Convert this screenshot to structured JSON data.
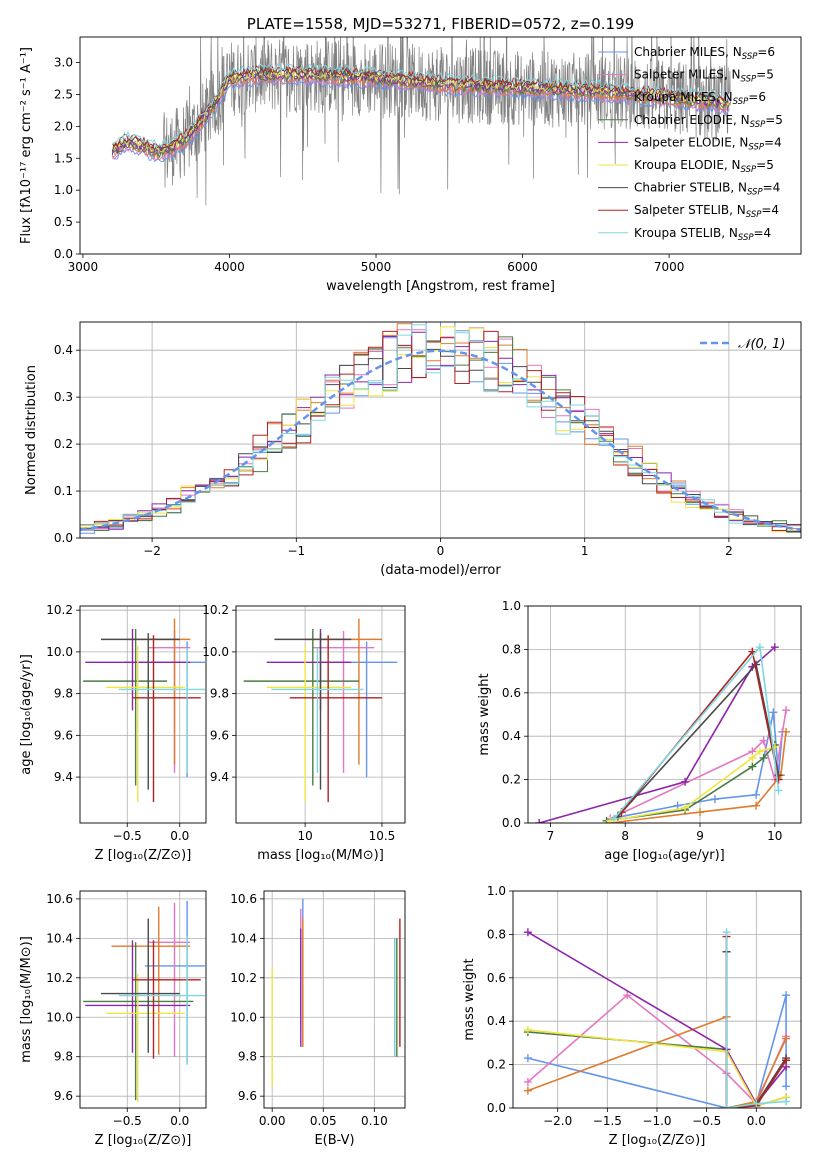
{
  "colors": [
    "#6495ed",
    "#e377c2",
    "#e07b2e",
    "#4a7c43",
    "#8e24aa",
    "#f0e442",
    "#4a4a4a",
    "#b22222",
    "#7fd8e0"
  ],
  "chart_data": [
    {
      "id": "spectrum",
      "type": "line",
      "title": "PLATE=1558, MJD=53271, FIBERID=0572, z=0.199",
      "xlabel": "wavelength [Angstrom, rest frame]",
      "ylabel": "Flux [fλ10⁻¹⁷ erg cm⁻² s⁻¹ A⁻¹]",
      "xlim": [
        2980,
        7900
      ],
      "ylim": [
        0,
        3.4
      ],
      "xticks": [
        3000,
        4000,
        5000,
        6000,
        7000
      ],
      "yticks": [
        0.0,
        0.5,
        1.0,
        1.5,
        2.0,
        2.5,
        3.0
      ],
      "continuum": [
        [
          3200,
          1.6
        ],
        [
          3300,
          1.75
        ],
        [
          3400,
          1.7
        ],
        [
          3500,
          1.6
        ],
        [
          3600,
          1.65
        ],
        [
          3700,
          1.8
        ],
        [
          3800,
          2.05
        ],
        [
          3900,
          2.35
        ],
        [
          4000,
          2.75
        ],
        [
          4200,
          2.8
        ],
        [
          4500,
          2.8
        ],
        [
          5000,
          2.75
        ],
        [
          5500,
          2.65
        ],
        [
          6000,
          2.6
        ],
        [
          6500,
          2.55
        ],
        [
          7000,
          2.45
        ],
        [
          7400,
          2.35
        ]
      ],
      "legend": [
        {
          "name": "Chabrier MILES, N",
          "sub": "SSP",
          "suffix": "=6"
        },
        {
          "name": "Salpeter MILES, N",
          "sub": "SSP",
          "suffix": "=5"
        },
        {
          "name": "Kroupa MILES, N",
          "sub": "SSP",
          "suffix": "=6"
        },
        {
          "name": "Chabrier ELODIE, N",
          "sub": "SSP",
          "suffix": "=5"
        },
        {
          "name": "Salpeter ELODIE, N",
          "sub": "SSP",
          "suffix": "=4"
        },
        {
          "name": "Kroupa ELODIE, N",
          "sub": "SSP",
          "suffix": "=5"
        },
        {
          "name": "Chabrier STELIB, N",
          "sub": "SSP",
          "suffix": "=4"
        },
        {
          "name": "Salpeter STELIB, N",
          "sub": "SSP",
          "suffix": "=4"
        },
        {
          "name": "Kroupa STELIB, N",
          "sub": "SSP",
          "suffix": "=4"
        }
      ],
      "legend_placement": "upper right",
      "grid": false
    },
    {
      "id": "residuals",
      "type": "histogram",
      "xlabel": "(data-model)/error",
      "ylabel": "Normed distribution",
      "xlim": [
        -2.5,
        2.5
      ],
      "ylim": [
        0,
        0.46
      ],
      "xticks": [
        -2,
        -1,
        0,
        1,
        2
      ],
      "yticks": [
        0.0,
        0.1,
        0.2,
        0.3,
        0.4
      ],
      "bin_width": 0.1,
      "legend": "𝒩(0, 1)",
      "grid": true
    },
    {
      "id": "age_vs_Z",
      "type": "errorbar",
      "xlabel": "Z [log₁₀(Z/Z⊙)]",
      "ylabel": "age  [log₁₀(age/yr)]",
      "xlim": [
        -0.95,
        0.25
      ],
      "ylim": [
        9.18,
        10.22
      ],
      "xticks": [
        -0.5,
        0.0
      ],
      "xticklabels": [
        "−0.5",
        "0.0"
      ],
      "yticks": [
        9.4,
        9.6,
        9.8,
        10.0,
        10.2
      ],
      "points": [
        {
          "x": 0.07,
          "y": 9.95,
          "xl": 0.6,
          "xh": 0.17,
          "yl": 0.55,
          "yh": 0.1
        },
        {
          "x": -0.05,
          "y": 10.02,
          "xl": 0.25,
          "xh": 0.15,
          "yl": 0.6,
          "yh": 0.08
        },
        {
          "x": -0.05,
          "y": 10.06,
          "xl": 0.45,
          "xh": 0.15,
          "yl": 0.6,
          "yh": 0.1
        },
        {
          "x": -0.42,
          "y": 9.86,
          "xl": 0.5,
          "xh": 0.3,
          "yl": 0.5,
          "yh": 0.25
        },
        {
          "x": -0.45,
          "y": 9.95,
          "xl": 0.45,
          "xh": 0.55,
          "yl": 0.23,
          "yh": 0.16
        },
        {
          "x": -0.4,
          "y": 9.83,
          "xl": 0.3,
          "xh": 0.45,
          "yl": 0.55,
          "yh": 0.2
        },
        {
          "x": -0.3,
          "y": 10.06,
          "xl": 0.45,
          "xh": 0.3,
          "yl": 0.72,
          "yh": 0.03
        },
        {
          "x": -0.25,
          "y": 9.78,
          "xl": 0.2,
          "xh": 0.45,
          "yl": 0.5,
          "yh": 0.3
        },
        {
          "x": 0.07,
          "y": 9.82,
          "xl": 0.65,
          "xh": 0.17,
          "yl": 0.4,
          "yh": 0.2
        }
      ]
    },
    {
      "id": "age_vs_mass",
      "type": "errorbar",
      "xlabel": "mass [log₁₀(M/M⊙)]",
      "ylabel": "",
      "xlim": [
        9.55,
        10.65
      ],
      "ylim": [
        9.18,
        10.22
      ],
      "xticks": [
        10.0,
        10.5
      ],
      "yticks": [
        9.4,
        9.6,
        9.8,
        10.0,
        10.2
      ],
      "points": [
        {
          "x": 10.4,
          "y": 9.95,
          "xl": 0.3,
          "xh": 0.2,
          "yl": 0.55,
          "yh": 0.1
        },
        {
          "x": 10.25,
          "y": 10.02,
          "xl": 0.2,
          "xh": 0.2,
          "yl": 0.6,
          "yh": 0.08
        },
        {
          "x": 10.35,
          "y": 10.06,
          "xl": 0.35,
          "xh": 0.15,
          "yl": 0.6,
          "yh": 0.1
        },
        {
          "x": 10.05,
          "y": 9.86,
          "xl": 0.45,
          "xh": 0.3,
          "yl": 0.5,
          "yh": 0.25
        },
        {
          "x": 10.1,
          "y": 9.95,
          "xl": 0.35,
          "xh": 0.2,
          "yl": 0.23,
          "yh": 0.16
        },
        {
          "x": 10.0,
          "y": 9.83,
          "xl": 0.25,
          "xh": 0.3,
          "yl": 0.55,
          "yh": 0.2
        },
        {
          "x": 10.1,
          "y": 10.06,
          "xl": 0.3,
          "xh": 0.2,
          "yl": 0.72,
          "yh": 0.03
        },
        {
          "x": 10.15,
          "y": 9.78,
          "xl": 0.25,
          "xh": 0.35,
          "yl": 0.5,
          "yh": 0.3
        },
        {
          "x": 10.08,
          "y": 9.82,
          "xl": 0.3,
          "xh": 0.3,
          "yl": 0.4,
          "yh": 0.2
        }
      ]
    },
    {
      "id": "weight_vs_age",
      "type": "line",
      "xlabel": "age  [log₁₀(age/yr)]",
      "ylabel": "mass weight",
      "xlim": [
        6.7,
        10.35
      ],
      "ylim": [
        0,
        1.0
      ],
      "xticks": [
        7,
        8,
        9,
        10
      ],
      "yticks": [
        0.0,
        0.2,
        0.4,
        0.6,
        0.8,
        1.0
      ],
      "series": [
        {
          "x": [
            7.8,
            8.7,
            9.2,
            9.75,
            9.98,
            10.05,
            10.1
          ],
          "y": [
            0.02,
            0.08,
            0.11,
            0.13,
            0.51,
            0.22,
            0.42
          ]
        },
        {
          "x": [
            7.8,
            9.7,
            9.85,
            10.0,
            10.15
          ],
          "y": [
            0.02,
            0.33,
            0.38,
            0.2,
            0.52
          ]
        },
        {
          "x": [
            7.8,
            9.0,
            9.75,
            10.08,
            10.15
          ],
          "y": [
            0.0,
            0.05,
            0.08,
            0.22,
            0.42
          ]
        },
        {
          "x": [
            7.75,
            8.8,
            9.7,
            9.85,
            10.0
          ],
          "y": [
            0.01,
            0.06,
            0.26,
            0.3,
            0.36
          ]
        },
        {
          "x": [
            6.85,
            8.8,
            9.7,
            10.0
          ],
          "y": [
            0.0,
            0.19,
            0.72,
            0.81
          ]
        },
        {
          "x": [
            7.8,
            8.8,
            9.7,
            9.8,
            10.0
          ],
          "y": [
            0.01,
            0.07,
            0.3,
            0.33,
            0.35
          ]
        },
        {
          "x": [
            7.9,
            9.75,
            10.05
          ],
          "y": [
            0.03,
            0.73,
            0.22
          ]
        },
        {
          "x": [
            7.95,
            9.7,
            10.05
          ],
          "y": [
            0.05,
            0.79,
            0.2
          ]
        },
        {
          "x": [
            7.85,
            9.8,
            10.05
          ],
          "y": [
            0.02,
            0.81,
            0.15
          ]
        }
      ]
    },
    {
      "id": "mass_vs_Z",
      "type": "errorbar",
      "xlabel": "Z [log₁₀(Z/Z⊙)]",
      "ylabel": "mass [log₁₀(M/M⊙)]",
      "xlim": [
        -0.95,
        0.25
      ],
      "ylim": [
        9.54,
        10.64
      ],
      "xticks": [
        -0.5,
        0.0
      ],
      "xticklabels": [
        "−0.5",
        "0.0"
      ],
      "yticks": [
        9.6,
        9.8,
        10.0,
        10.2,
        10.4,
        10.6
      ],
      "points": [
        {
          "x": 0.07,
          "y": 10.26,
          "xl": 0.4,
          "xh": 0.17,
          "yl": 0.5,
          "yh": 0.33
        },
        {
          "x": -0.05,
          "y": 10.38,
          "xl": 0.25,
          "xh": 0.15,
          "yl": 0.58,
          "yh": 0.2
        },
        {
          "x": -0.2,
          "y": 10.36,
          "xl": 0.45,
          "xh": 0.3,
          "yl": 0.55,
          "yh": 0.2
        },
        {
          "x": -0.42,
          "y": 10.08,
          "xl": 0.5,
          "xh": 0.55,
          "yl": 0.5,
          "yh": 0.3
        },
        {
          "x": -0.45,
          "y": 10.06,
          "xl": 0.45,
          "xh": 0.55,
          "yl": 0.24,
          "yh": 0.33
        },
        {
          "x": -0.4,
          "y": 10.02,
          "xl": 0.3,
          "xh": 0.45,
          "yl": 0.45,
          "yh": 0.2
        },
        {
          "x": -0.3,
          "y": 10.12,
          "xl": 0.45,
          "xh": 0.3,
          "yl": 0.3,
          "yh": 0.38
        },
        {
          "x": -0.25,
          "y": 10.19,
          "xl": 0.2,
          "xh": 0.45,
          "yl": 0.4,
          "yh": 0.2
        },
        {
          "x": 0.07,
          "y": 10.11,
          "xl": 0.65,
          "xh": 0.17,
          "yl": 0.35,
          "yh": 0.3
        }
      ]
    },
    {
      "id": "mass_vs_ebv",
      "type": "errorbar",
      "xlabel": "E(B-V)",
      "ylabel": "",
      "xlim": [
        -0.008,
        0.13
      ],
      "ylim": [
        9.54,
        10.64
      ],
      "xticks": [
        0.0,
        0.05,
        0.1
      ],
      "xticklabels": [
        "0.00",
        "0.05",
        "0.10"
      ],
      "yticks": [
        9.6,
        9.8,
        10.0,
        10.2,
        10.4,
        10.6
      ],
      "points": [
        {
          "x": 0.03,
          "y": 10.25,
          "yl": 0.4,
          "yh": 0.35
        },
        {
          "x": 0.028,
          "y": 10.3,
          "yl": 0.35,
          "yh": 0.25
        },
        {
          "x": 0.03,
          "y": 10.2,
          "yl": 0.35,
          "yh": 0.3
        },
        {
          "x": 0.122,
          "y": 10.1,
          "yl": 0.3,
          "yh": 0.3
        },
        {
          "x": 0.028,
          "y": 10.05,
          "yl": 0.2,
          "yh": 0.4
        },
        {
          "x": 0.0,
          "y": 9.95,
          "yl": 0.3,
          "yh": 0.3
        },
        {
          "x": 0.12,
          "y": 10.1,
          "yl": 0.3,
          "yh": 0.3
        },
        {
          "x": 0.125,
          "y": 10.15,
          "yl": 0.3,
          "yh": 0.35
        },
        {
          "x": 0.12,
          "y": 10.05,
          "yl": 0.25,
          "yh": 0.35
        }
      ]
    },
    {
      "id": "weight_vs_Z",
      "type": "line",
      "xlabel": "Z [log₁₀(Z/Z⊙)]",
      "ylabel": "mass weight",
      "xlim": [
        -2.45,
        0.45
      ],
      "ylim": [
        0,
        1.0
      ],
      "xticks": [
        -2.0,
        -1.5,
        -1.0,
        -0.5,
        0.0
      ],
      "xticklabels": [
        "−2.0",
        "−1.5",
        "−1.0",
        "−0.5",
        "0.0"
      ],
      "yticks": [
        0.0,
        0.2,
        0.4,
        0.6,
        0.8,
        1.0
      ],
      "series": [
        {
          "x": [
            -2.3,
            -0.3,
            0.0,
            0.3,
            0.3
          ],
          "y": [
            0.23,
            0.0,
            0.02,
            0.52,
            0.1
          ]
        },
        {
          "x": [
            -2.3,
            -1.3,
            -0.3,
            0.0,
            0.3
          ],
          "y": [
            0.12,
            0.52,
            0.16,
            0.02,
            0.33
          ]
        },
        {
          "x": [
            -2.3,
            -0.3,
            -0.3,
            0.0,
            0.3
          ],
          "y": [
            0.08,
            0.42,
            0.0,
            0.03,
            0.32
          ]
        },
        {
          "x": [
            -2.3,
            -0.3,
            0.0,
            0.3
          ],
          "y": [
            0.35,
            0.27,
            0.01,
            0.05
          ]
        },
        {
          "x": [
            -2.3,
            -0.3,
            0.0,
            0.3
          ],
          "y": [
            0.81,
            0.27,
            0.02,
            0.19
          ]
        },
        {
          "x": [
            -2.3,
            -0.3,
            0.0,
            0.3
          ],
          "y": [
            0.36,
            0.26,
            0.01,
            0.05
          ]
        },
        {
          "x": [
            -0.3,
            -0.3,
            0.0,
            0.3
          ],
          "y": [
            0.72,
            0.0,
            0.02,
            0.23
          ]
        },
        {
          "x": [
            -0.3,
            -0.3,
            0.0,
            0.3
          ],
          "y": [
            0.79,
            0.0,
            0.01,
            0.22
          ]
        },
        {
          "x": [
            -0.3,
            -0.3,
            0.0,
            0.3
          ],
          "y": [
            0.81,
            0.0,
            0.02,
            0.03
          ]
        }
      ]
    }
  ]
}
